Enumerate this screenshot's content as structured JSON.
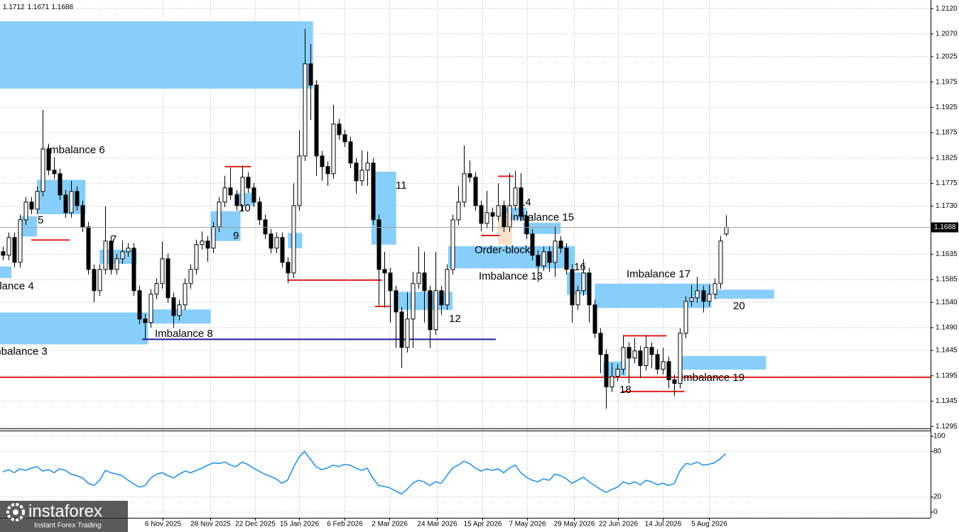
{
  "chart_data": [
    {
      "type": "candlestick",
      "up_color": "#ffffff",
      "down_color": "#000000",
      "wick_color": "#000000",
      "zone_color": "#87cefa",
      "grid": true,
      "xlim": [
        -0.5,
        163
      ],
      "ylim": [
        1.1291,
        1.2137
      ],
      "yticks": [
        {
          "value": 1.212,
          "label": "1.2120"
        },
        {
          "value": 1.207,
          "label": "1.2070"
        },
        1.2025,
        1.1975,
        1.1925,
        1.1875,
        1.1825,
        1.1775,
        {
          "value": 1.173,
          "label": "1.1730"
        },
        1.1635,
        1.1585,
        {
          "value": 1.154,
          "label": "1.1540"
        },
        {
          "value": 1.149,
          "label": "1.1490"
        },
        1.1445,
        1.1395,
        1.1345,
        1.1295
      ],
      "open": [
        1.164,
        1.1633,
        1.1668,
        1.1619,
        1.1703,
        1.1738,
        1.1724,
        1.1759,
        1.1843,
        1.1801,
        1.1794,
        1.1752,
        1.1717,
        1.1759,
        1.1731,
        1.1689,
        1.1605,
        1.1563,
        1.1605,
        1.1661,
        1.1605,
        1.1626,
        1.164,
        1.1647,
        1.1563,
        1.1507,
        1.15,
        1.1556,
        1.1577,
        1.1626,
        1.1549,
        1.1514,
        1.1535,
        1.1577,
        1.1605,
        1.1654,
        1.1661,
        1.1647,
        1.1689,
        1.1738,
        1.1766,
        1.1752,
        1.1731,
        1.1787,
        1.1766,
        1.1738,
        1.1703,
        1.1675,
        1.1647,
        1.1668,
        1.1619,
        1.1598,
        1.1731,
        1.1829,
        1.2011,
        1.1969,
        1.1829,
        1.1808,
        1.1794,
        1.1892,
        1.1871,
        1.1857,
        1.1815,
        1.178,
        1.1801,
        1.1815,
        1.1703,
        1.1605,
        1.1598,
        1.1563,
        1.1521,
        1.1451,
        1.1507,
        1.1577,
        1.1598,
        1.1563,
        1.1486,
        1.1563,
        1.1535,
        1.1605,
        1.1703,
        1.1738,
        1.1794,
        1.1787,
        1.1731,
        1.1696,
        1.1717,
        1.171,
        1.1731,
        1.1689,
        1.1731,
        1.1766,
        1.171,
        1.1675,
        1.1633,
        1.1612,
        1.164,
        1.1619,
        1.1661,
        1.1647,
        1.1605,
        1.1535,
        1.1563,
        1.1598,
        1.1535,
        1.1479,
        1.1437,
        1.1373,
        1.1394,
        1.1408,
        1.1451,
        1.143,
        1.1444,
        1.1415,
        1.1451,
        1.1437,
        1.1408,
        1.1423,
        1.1387,
        1.138,
        1.1479,
        1.1542,
        1.1549,
        1.1563,
        1.1542,
        1.1556,
        1.1577,
        1.1675
      ],
      "high": [
        1.165,
        1.1678,
        1.1678,
        1.1713,
        1.1748,
        1.1748,
        1.1769,
        1.192,
        1.1853,
        1.1826,
        1.1804,
        1.1762,
        1.178,
        1.1769,
        1.1741,
        1.1699,
        1.1615,
        1.1615,
        1.173,
        1.1671,
        1.1636,
        1.1662,
        1.1657,
        1.1657,
        1.1573,
        1.1517,
        1.1566,
        1.1587,
        1.166,
        1.1636,
        1.1559,
        1.1545,
        1.1587,
        1.1615,
        1.1664,
        1.168,
        1.1671,
        1.1699,
        1.1748,
        1.179,
        1.1806,
        1.1762,
        1.181,
        1.1797,
        1.1776,
        1.1748,
        1.1713,
        1.1685,
        1.1678,
        1.1678,
        1.1629,
        1.1775,
        1.188,
        1.208,
        1.205,
        1.1979,
        1.1839,
        1.1818,
        1.193,
        1.1902,
        1.1881,
        1.1867,
        1.1825,
        1.184,
        1.1838,
        1.1825,
        1.1713,
        1.164,
        1.1608,
        1.1573,
        1.1531,
        1.156,
        1.16,
        1.165,
        1.164,
        1.1573,
        1.164,
        1.1573,
        1.1615,
        1.1713,
        1.177,
        1.185,
        1.182,
        1.1797,
        1.1741,
        1.176,
        1.1727,
        1.1775,
        1.1741,
        1.1795,
        1.18,
        1.1795,
        1.172,
        1.1685,
        1.1643,
        1.165,
        1.165,
        1.169,
        1.1671,
        1.1657,
        1.1615,
        1.1573,
        1.1625,
        1.1608,
        1.1545,
        1.1489,
        1.1447,
        1.142,
        1.1418,
        1.1475,
        1.1461,
        1.147,
        1.1454,
        1.1475,
        1.1461,
        1.1447,
        1.145,
        1.1433,
        1.1397,
        1.1489,
        1.1552,
        1.1575,
        1.159,
        1.1573,
        1.1575,
        1.1587,
        1.1671,
        1.1712
      ],
      "low": [
        1.1623,
        1.1623,
        1.1609,
        1.1609,
        1.1693,
        1.1714,
        1.1714,
        1.1749,
        1.1791,
        1.1784,
        1.1742,
        1.1707,
        1.1707,
        1.1721,
        1.1679,
        1.1595,
        1.154,
        1.1553,
        1.1595,
        1.1595,
        1.1595,
        1.1616,
        1.163,
        1.1553,
        1.1497,
        1.1468,
        1.149,
        1.1546,
        1.1567,
        1.1539,
        1.149,
        1.1504,
        1.1525,
        1.1567,
        1.1595,
        1.1644,
        1.162,
        1.1637,
        1.1679,
        1.1728,
        1.1742,
        1.1721,
        1.1721,
        1.1756,
        1.1728,
        1.1693,
        1.1665,
        1.1637,
        1.1637,
        1.1609,
        1.1578,
        1.1588,
        1.1721,
        1.1819,
        1.19,
        1.179,
        1.178,
        1.177,
        1.1784,
        1.1861,
        1.1847,
        1.1805,
        1.1755,
        1.177,
        1.177,
        1.1693,
        1.1534,
        1.153,
        1.15,
        1.145,
        1.141,
        1.1441,
        1.145,
        1.1567,
        1.15,
        1.145,
        1.1476,
        1.1515,
        1.1525,
        1.1595,
        1.1693,
        1.1728,
        1.1777,
        1.1721,
        1.168,
        1.1686,
        1.168,
        1.17,
        1.1679,
        1.1679,
        1.1721,
        1.17,
        1.1665,
        1.1623,
        1.158,
        1.1602,
        1.16,
        1.159,
        1.1637,
        1.1595,
        1.15,
        1.1525,
        1.1553,
        1.15,
        1.1469,
        1.14,
        1.133,
        1.1363,
        1.1384,
        1.1398,
        1.138,
        1.142,
        1.139,
        1.1405,
        1.141,
        1.1398,
        1.1398,
        1.137,
        1.1355,
        1.137,
        1.1469,
        1.1532,
        1.1539,
        1.152,
        1.1532,
        1.1546,
        1.1567,
        1.1671
      ],
      "close": [
        1.1633,
        1.1668,
        1.1619,
        1.1703,
        1.1738,
        1.1724,
        1.1759,
        1.1843,
        1.1801,
        1.1794,
        1.1752,
        1.1717,
        1.1759,
        1.1731,
        1.1689,
        1.1605,
        1.1563,
        1.1605,
        1.1661,
        1.1605,
        1.1626,
        1.164,
        1.1647,
        1.1563,
        1.1507,
        1.15,
        1.1556,
        1.1577,
        1.1626,
        1.1549,
        1.1514,
        1.1535,
        1.1577,
        1.1605,
        1.1654,
        1.1661,
        1.1647,
        1.1689,
        1.1738,
        1.1766,
        1.1752,
        1.1731,
        1.1787,
        1.1766,
        1.1738,
        1.1703,
        1.1675,
        1.1647,
        1.1668,
        1.1619,
        1.1598,
        1.1731,
        1.1829,
        1.2011,
        1.1969,
        1.1829,
        1.1808,
        1.1794,
        1.1892,
        1.1871,
        1.1857,
        1.1815,
        1.178,
        1.1801,
        1.1815,
        1.1703,
        1.1605,
        1.1598,
        1.1563,
        1.1521,
        1.1451,
        1.1507,
        1.1577,
        1.1598,
        1.1563,
        1.1486,
        1.1563,
        1.1535,
        1.1605,
        1.1703,
        1.1738,
        1.1794,
        1.1787,
        1.1731,
        1.1696,
        1.1717,
        1.171,
        1.1731,
        1.1689,
        1.1731,
        1.1766,
        1.171,
        1.1675,
        1.1633,
        1.1612,
        1.164,
        1.1619,
        1.1661,
        1.1647,
        1.1605,
        1.1535,
        1.1563,
        1.1598,
        1.1535,
        1.1479,
        1.1437,
        1.1373,
        1.1394,
        1.1408,
        1.1451,
        1.143,
        1.1444,
        1.1415,
        1.1451,
        1.1437,
        1.1408,
        1.1423,
        1.1387,
        1.138,
        1.1479,
        1.1542,
        1.1549,
        1.1563,
        1.1542,
        1.1556,
        1.1577,
        1.1661,
        1.1688
      ],
      "zones": [
        {
          "x": [
            -0.5,
            54.5
          ],
          "y": [
            1.2095,
            1.1962
          ]
        },
        {
          "label": "Imbalance 4",
          "x": [
            -0.5,
            1.5
          ],
          "y": [
            1.1611,
            1.1588
          ]
        },
        {
          "label": "Imbalance 3",
          "x": [
            -0.5,
            25.5
          ],
          "y": [
            1.152,
            1.1457
          ]
        },
        {
          "label": "5",
          "x": [
            3,
            6
          ],
          "y": [
            1.171,
            1.167
          ]
        },
        {
          "label": "Imbalance 6",
          "x": [
            6,
            14.5
          ],
          "y": [
            1.1782,
            1.1714
          ]
        },
        {
          "label": "7",
          "x": [
            17,
            23.5
          ],
          "y": [
            1.1644,
            1.1616
          ]
        },
        {
          "label": "Imbalance 8",
          "x": [
            25.75,
            36.5
          ],
          "y": [
            1.1526,
            1.1498
          ]
        },
        {
          "label": "9",
          "x": [
            36.5,
            41.75
          ],
          "y": [
            1.172,
            1.1661
          ]
        },
        {
          "label": "10",
          "x": [
            40.75,
            44.25
          ],
          "y": [
            1.1756,
            1.1731
          ]
        },
        {
          "x": [
            50.1,
            52.6
          ],
          "y": [
            1.1677,
            1.1647
          ]
        },
        {
          "label": "11",
          "x": [
            64.75,
            69.1
          ],
          "y": [
            1.1798,
            1.1654
          ]
        },
        {
          "label": "12",
          "x": [
            69.5,
            79
          ],
          "y": [
            1.1561,
            1.1525
          ]
        },
        {
          "label": "Imbalance 13",
          "x": [
            78.25,
            100.5
          ],
          "y": [
            1.1651,
            1.1607
          ]
        },
        {
          "label": "14",
          "x": [
            88.25,
            92
          ],
          "y": [
            1.1727,
            1.1703
          ]
        },
        {
          "label": "Order-block",
          "color": "#fbe1c8",
          "x": [
            87,
            89.5
          ],
          "y": [
            1.1717,
            1.1654
          ]
        },
        {
          "label": "Imbalance 15",
          "x": [
            91.4,
            98
          ],
          "y": [
            1.1697,
            1.1675
          ]
        },
        {
          "label": "16",
          "x": [
            99.1,
            103.25
          ],
          "y": [
            1.1599,
            1.1555
          ]
        },
        {
          "label": "Imbalance 17",
          "x": [
            104,
            124.5
          ],
          "y": [
            1.1577,
            1.1529
          ]
        },
        {
          "label": "18",
          "x": [
            105.5,
            109.5
          ],
          "y": [
            1.1423,
            1.1395
          ]
        },
        {
          "label": "Imbalance 19",
          "x": [
            118.9,
            134.1
          ],
          "y": [
            1.1434,
            1.1407
          ]
        },
        {
          "label": "20",
          "x": [
            125.1,
            135.5
          ],
          "y": [
            1.1565,
            1.1547
          ]
        }
      ],
      "levels": [
        {
          "price": 1.1392,
          "x": [
            -0.5,
            163
          ],
          "color": "#e0201a"
        },
        {
          "price": 1.1467,
          "x": [
            24.5,
            86.6
          ],
          "color": "#1c1c9c"
        },
        {
          "price": 1.1584,
          "x": [
            50,
            66.6
          ],
          "color": "#e0201a"
        },
        {
          "price": 1.1663,
          "x": [
            5,
            11.75
          ],
          "color": "#e0201a"
        },
        {
          "price": 1.1808,
          "x": [
            39,
            43.6
          ],
          "color": "#e0201a"
        },
        {
          "price": 1.1532,
          "x": [
            65.4,
            68
          ],
          "color": "#e0201a"
        },
        {
          "price": 1.1672,
          "x": [
            84,
            87.25
          ],
          "color": "#e0201a"
        },
        {
          "price": 1.1789,
          "x": [
            87,
            89.75
          ],
          "color": "#e0201a"
        },
        {
          "price": 1.1474,
          "x": [
            109,
            116.6
          ],
          "color": "#e0201a"
        },
        {
          "price": 1.1364,
          "x": [
            108.75,
            119.75
          ],
          "color": "#e0201a"
        }
      ]
    },
    {
      "type": "line",
      "color": "#1e8ce6",
      "grid": true,
      "xlim": [
        -0.5,
        163
      ],
      "ylim": [
        -7.5,
        107.5
      ],
      "yticks": [
        100,
        80,
        20,
        0
      ],
      "xticks": [
        {
          "value": 28.1,
          "label": "6 Nov 2025"
        },
        {
          "value": 36.4,
          "label": "28 Nov 2025"
        },
        {
          "value": 44.25,
          "label": "22 Dec 2025"
        },
        {
          "value": 52.1,
          "label": "15 Jan 2026"
        },
        {
          "value": 60,
          "label": "6 Feb 2026"
        },
        {
          "value": 67.9,
          "label": "2 Mar 2026"
        },
        {
          "value": 76.25,
          "label": "24 Mar 2026"
        },
        {
          "value": 84.25,
          "label": "15 Apr 2026"
        },
        {
          "value": 92.1,
          "label": "7 May 2026"
        },
        {
          "value": 100.4,
          "label": "29 May 2026"
        },
        {
          "value": 108.1,
          "label": "22 Jun 2026"
        },
        {
          "value": 116,
          "label": "14 Jul 2026"
        },
        {
          "value": 124,
          "label": "5 Aug 2026"
        }
      ],
      "values": [
        53,
        56,
        52,
        57,
        55,
        58,
        60,
        54,
        56,
        52,
        57,
        55,
        50,
        48,
        45,
        38,
        35,
        42,
        55,
        52,
        50,
        48,
        42,
        37,
        33,
        35,
        45,
        50,
        52,
        48,
        45,
        50,
        54,
        52,
        55,
        58,
        62,
        65,
        64,
        66,
        62,
        60,
        66,
        63,
        58,
        54,
        50,
        47,
        44,
        38,
        42,
        58,
        72,
        80,
        70,
        60,
        56,
        58,
        62,
        60,
        63,
        62,
        58,
        55,
        58,
        45,
        35,
        34,
        32,
        28,
        24,
        30,
        38,
        42,
        40,
        35,
        40,
        38,
        48,
        58,
        62,
        67,
        64,
        58,
        54,
        57,
        55,
        57,
        52,
        58,
        62,
        52,
        46,
        42,
        40,
        44,
        42,
        50,
        48,
        44,
        38,
        42,
        46,
        40,
        35,
        30,
        26,
        30,
        33,
        40,
        37,
        40,
        36,
        42,
        40,
        36,
        38,
        35,
        38,
        55,
        64,
        63,
        66,
        62,
        63,
        65,
        70,
        77
      ]
    }
  ],
  "watermark": {
    "brand": "instaforex",
    "tagline": "Instant Forex Trading"
  }
}
